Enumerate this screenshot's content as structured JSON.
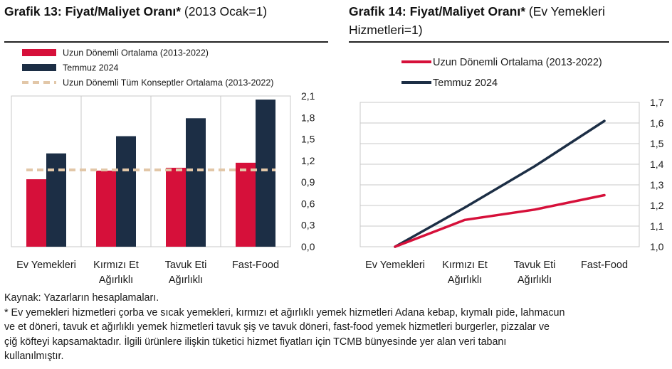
{
  "title_left": {
    "bold": "Grafik 13: Fiyat/Maliyet Oranı*",
    "normal": "(2013 Ocak=1)"
  },
  "title_right": {
    "bold": "Grafik 14: Fiyat/Maliyet Oranı*",
    "normal": "(Ev Yemekleri Hizmetleri=1)"
  },
  "colors": {
    "red": "#d6103a",
    "navy": "#1c2e45",
    "dashed": "#e2c7a8",
    "grid": "#c8c8c8"
  },
  "chart_data": [
    {
      "type": "bar",
      "categories": [
        "Ev Yemekleri",
        "Kırmızı Et Ağırlıklı",
        "Tavuk Eti Ağırlıklı",
        "Fast-Food"
      ],
      "category_lines": [
        [
          "Ev Yemekleri"
        ],
        [
          "Kırmızı Et",
          "Ağırlıklı"
        ],
        [
          "Tavuk Eti",
          "Ağırlıklı"
        ],
        [
          "Fast-Food"
        ]
      ],
      "series": [
        {
          "name": "Uzun Dönemli Ortalama (2013-2022)",
          "values": [
            0.94,
            1.06,
            1.1,
            1.17
          ],
          "color": "#d6103a"
        },
        {
          "name": "Temmuz 2024",
          "values": [
            1.3,
            1.54,
            1.79,
            2.05
          ],
          "color": "#1c2e45"
        }
      ],
      "reference_line": {
        "name": "Uzun Dönemli Tüm Konseptler Ortalama (2013-2022)",
        "value": 1.07,
        "color": "#e2c7a8"
      },
      "yticks": [
        "0,0",
        "0,3",
        "0,6",
        "0,9",
        "1,2",
        "1,5",
        "1,8",
        "2,1"
      ],
      "ylim": [
        0,
        2.1
      ],
      "grid": true,
      "legend_position": "top-left"
    },
    {
      "type": "line",
      "categories": [
        "Ev Yemekleri",
        "Kırmızı Et Ağırlıklı",
        "Tavuk Eti Ağırlıklı",
        "Fast-Food"
      ],
      "category_lines": [
        [
          "Ev Yemekleri"
        ],
        [
          "Kırmızı Et",
          "Ağırlıklı"
        ],
        [
          "Tavuk Eti",
          "Ağırlıklı"
        ],
        [
          "Fast-Food"
        ]
      ],
      "series": [
        {
          "name": "Uzun Dönemli Ortalama (2013-2022)",
          "values": [
            1.0,
            1.13,
            1.18,
            1.25
          ],
          "color": "#d6103a"
        },
        {
          "name": "Temmuz 2024",
          "values": [
            1.0,
            1.19,
            1.39,
            1.61
          ],
          "color": "#1c2e45"
        }
      ],
      "yticks": [
        "1,0",
        "1,1",
        "1,2",
        "1,3",
        "1,4",
        "1,5",
        "1,6",
        "1,7"
      ],
      "ylim": [
        1.0,
        1.7
      ],
      "grid": true,
      "legend_position": "top-left"
    }
  ],
  "footer": {
    "source": "Kaynak: Yazarların hesaplamaları.",
    "note_lines": [
      "* Ev yemekleri hizmetleri çorba ve sıcak yemekleri, kırmızı et ağırlıklı yemek hizmetleri Adana kebap, kıymalı pide, lahmacun",
      "ve et döneri, tavuk et ağırlıklı yemek hizmetleri tavuk şiş ve tavuk döneri, fast-food yemek hizmetleri burgerler, pizzalar ve",
      "çiğ köfteyi kapsamaktadır. İlgili ürünlere ilişkin tüketici hizmet fiyatları için TCMB bünyesinde yer alan veri tabanı",
      "kullanılmıştır."
    ]
  }
}
